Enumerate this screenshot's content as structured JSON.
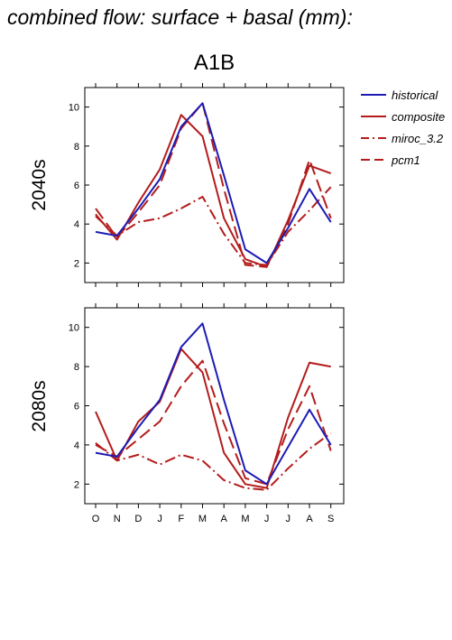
{
  "figure": {
    "title": "combined flow: surface + basal (mm):",
    "scenario": "A1B"
  },
  "colors": {
    "historical": "#1c1cb4",
    "composite": "#b41c1c",
    "miroc_3.2": "#b41c1c",
    "pcm1": "#b41c1c",
    "axis": "#000000"
  },
  "legend": [
    {
      "name": "historical",
      "style": "solid",
      "color": "#1c1cb4"
    },
    {
      "name": "composite",
      "style": "solid",
      "color": "#b41c1c"
    },
    {
      "name": "miroc_3.2",
      "style": "dashdot",
      "color": "#b41c1c"
    },
    {
      "name": "pcm1",
      "style": "dashed",
      "color": "#b41c1c"
    }
  ],
  "chart_data": [
    {
      "type": "line",
      "ylabel": "2040s",
      "categories": [
        "O",
        "N",
        "D",
        "J",
        "F",
        "M",
        "A",
        "M",
        "J",
        "J",
        "A",
        "S"
      ],
      "yticks": [
        2,
        4,
        6,
        8,
        10
      ],
      "ylim": [
        1,
        11
      ],
      "grid": false,
      "series": [
        {
          "name": "historical",
          "values": [
            3.6,
            3.4,
            4.8,
            6.3,
            9.0,
            10.2,
            6.5,
            2.7,
            2.0,
            3.8,
            5.8,
            4.1
          ]
        },
        {
          "name": "composite",
          "values": [
            4.5,
            3.2,
            5.1,
            6.8,
            9.6,
            8.5,
            4.3,
            2.2,
            1.8,
            4.2,
            7.0,
            6.6
          ]
        },
        {
          "name": "miroc_3.2",
          "values": [
            4.4,
            3.4,
            4.1,
            4.3,
            4.8,
            5.4,
            3.5,
            2.0,
            1.9,
            3.6,
            4.7,
            5.9
          ]
        },
        {
          "name": "pcm1",
          "values": [
            4.8,
            3.3,
            4.6,
            6.0,
            8.9,
            10.2,
            5.8,
            1.9,
            1.8,
            4.0,
            7.3,
            4.3
          ]
        }
      ]
    },
    {
      "type": "line",
      "ylabel": "2080s",
      "categories": [
        "O",
        "N",
        "D",
        "J",
        "F",
        "M",
        "A",
        "M",
        "J",
        "J",
        "A",
        "S"
      ],
      "yticks": [
        2,
        4,
        6,
        8,
        10
      ],
      "ylim": [
        1,
        11
      ],
      "grid": false,
      "series": [
        {
          "name": "historical",
          "values": [
            3.6,
            3.4,
            4.9,
            6.3,
            9.0,
            10.2,
            6.3,
            2.7,
            2.0,
            3.9,
            5.8,
            4.0
          ]
        },
        {
          "name": "composite",
          "values": [
            5.7,
            3.2,
            5.2,
            6.2,
            8.9,
            7.7,
            3.6,
            2.0,
            1.8,
            5.4,
            8.2,
            8.0
          ]
        },
        {
          "name": "miroc_3.2",
          "values": [
            4.1,
            3.2,
            3.5,
            3.0,
            3.5,
            3.2,
            2.2,
            1.8,
            1.7,
            2.8,
            3.8,
            4.6
          ]
        },
        {
          "name": "pcm1",
          "values": [
            4.0,
            3.4,
            4.3,
            5.2,
            7.0,
            8.3,
            5.1,
            2.3,
            2.0,
            4.8,
            7.0,
            3.7
          ]
        }
      ]
    }
  ]
}
